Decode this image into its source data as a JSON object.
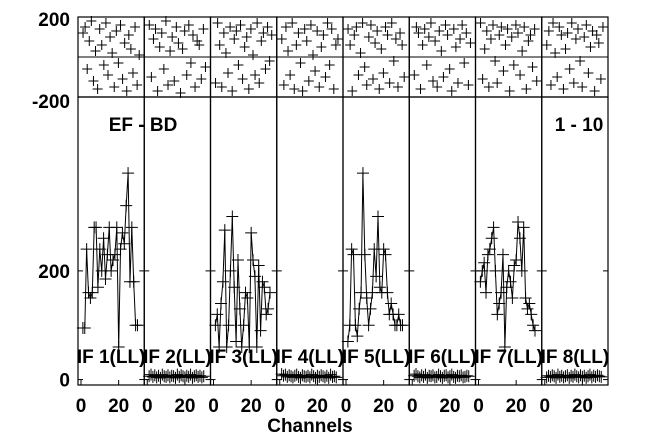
{
  "chart_data": {
    "type": "line",
    "title_text": "EF - BD",
    "baseline_text": "1 - 10",
    "xlabel": "Channels",
    "top_panel": {
      "ylim": [
        -200,
        200
      ],
      "yticks": [
        "200",
        "-200"
      ],
      "residuals": [
        [
          120,
          150,
          -60,
          80,
          180,
          -120,
          30,
          -160,
          140,
          60,
          -40,
          170,
          -90,
          100,
          20,
          -150,
          130,
          -30,
          160,
          -110,
          70,
          -170,
          110,
          40,
          -80,
          150,
          -140,
          10
        ],
        [
          160,
          -100,
          90,
          140,
          -170,
          50,
          120,
          -60,
          180,
          -140,
          30,
          100,
          -120,
          150,
          70,
          -180,
          40,
          130,
          -90,
          160,
          -30,
          110,
          -150,
          80,
          60,
          -110,
          140,
          -50
        ],
        [
          -130,
          170,
          60,
          -150,
          120,
          20,
          -80,
          150,
          -170,
          90,
          130,
          -40,
          160,
          -110,
          50,
          100,
          -160,
          140,
          10,
          -90,
          170,
          -130,
          80,
          120,
          -60,
          150,
          -20,
          110
        ],
        [
          90,
          -140,
          150,
          30,
          -90,
          170,
          -160,
          60,
          120,
          -30,
          -170,
          140,
          80,
          -120,
          160,
          10,
          -70,
          130,
          -150,
          50,
          110,
          -100,
          170,
          -40,
          140,
          -160,
          60,
          90
        ],
        [
          140,
          60,
          -170,
          110,
          150,
          -90,
          20,
          170,
          -50,
          -140,
          100,
          160,
          -110,
          70,
          130,
          -160,
          40,
          -80,
          150,
          110,
          -130,
          170,
          -20,
          90,
          -150,
          120,
          60,
          -100
        ],
        [
          -90,
          150,
          120,
          -160,
          60,
          140,
          -40,
          100,
          170,
          -120,
          80,
          -150,
          130,
          30,
          -100,
          160,
          110,
          -60,
          -170,
          140,
          50,
          -130,
          90,
          160,
          -30,
          120,
          -140,
          70
        ],
        [
          170,
          -110,
          40,
          130,
          -150,
          90,
          160,
          -20,
          -130,
          110,
          150,
          -70,
          60,
          140,
          -170,
          100,
          -40,
          160,
          120,
          -90,
          30,
          150,
          -160,
          80,
          110,
          -50,
          140,
          -120
        ],
        [
          60,
          130,
          -140,
          170,
          20,
          -100,
          150,
          110,
          -160,
          40,
          120,
          -60,
          170,
          -130,
          90,
          140,
          -20,
          -150,
          100,
          160,
          -80,
          50,
          130,
          -170,
          110,
          70,
          -110,
          150
        ]
      ]
    },
    "main_panel": {
      "ylim": [
        -10,
        520
      ],
      "yticks": [
        0,
        200
      ],
      "xlim": [
        0,
        32
      ],
      "xticks": [
        0,
        20
      ]
    },
    "series": [
      {
        "name": "IF 1(LL)",
        "x": [
          1,
          2,
          3,
          4,
          5,
          6,
          7,
          8,
          9,
          10,
          11,
          12,
          13,
          14,
          15,
          16,
          17,
          18,
          19,
          20,
          21,
          22,
          23,
          24,
          25,
          26,
          27,
          28,
          29,
          30
        ],
        "values": [
          95,
          95,
          240,
          160,
          150,
          160,
          280,
          280,
          170,
          240,
          200,
          260,
          185,
          230,
          280,
          200,
          220,
          230,
          280,
          60,
          240,
          270,
          250,
          320,
          380,
          180,
          280,
          180,
          100,
          100
        ]
      },
      {
        "name": "IF 2(LL)",
        "x": [
          1,
          2,
          3,
          4,
          5,
          6,
          7,
          8,
          9,
          10,
          11,
          12,
          13,
          14,
          15,
          16,
          17,
          18,
          19,
          20,
          21,
          22,
          23,
          24,
          25,
          26,
          27,
          28,
          29,
          30
        ],
        "values": [
          6,
          9,
          5,
          8,
          4,
          7,
          3,
          9,
          6,
          5,
          8,
          4,
          7,
          6,
          3,
          9,
          5,
          8,
          6,
          4,
          7,
          5,
          9,
          3,
          6,
          8,
          5,
          7,
          4,
          6
        ]
      },
      {
        "name": "IF 3(LL)",
        "x": [
          1,
          2,
          3,
          4,
          5,
          6,
          7,
          8,
          9,
          10,
          11,
          12,
          13,
          14,
          15,
          16,
          17,
          18,
          19,
          20,
          21,
          22,
          23,
          24,
          25,
          26,
          27,
          28,
          29,
          30
        ],
        "values": [
          100,
          120,
          60,
          140,
          180,
          275,
          60,
          100,
          200,
          300,
          170,
          70,
          220,
          130,
          60,
          100,
          160,
          150,
          60,
          270,
          220,
          190,
          60,
          210,
          90,
          180,
          170,
          120,
          130,
          160
        ]
      },
      {
        "name": "IF 4(LL)",
        "x": [
          1,
          2,
          3,
          4,
          5,
          6,
          7,
          8,
          9,
          10,
          11,
          12,
          13,
          14,
          15,
          16,
          17,
          18,
          19,
          20,
          21,
          22,
          23,
          24,
          25,
          26,
          27,
          28,
          29,
          30
        ],
        "values": [
          10,
          7,
          9,
          5,
          8,
          6,
          4,
          7,
          9,
          5,
          3,
          8,
          6,
          5,
          7,
          4,
          9,
          6,
          3,
          7,
          5,
          8,
          6,
          4,
          7,
          3,
          9,
          5,
          6,
          4
        ]
      },
      {
        "name": "IF 5(LL)",
        "x": [
          1,
          2,
          3,
          4,
          5,
          6,
          7,
          8,
          9,
          10,
          11,
          12,
          13,
          14,
          15,
          16,
          17,
          18,
          19,
          20,
          21,
          22,
          23,
          24,
          25,
          26,
          27,
          28,
          29,
          30
        ],
        "values": [
          70,
          100,
          240,
          230,
          100,
          80,
          130,
          160,
          380,
          230,
          150,
          100,
          130,
          160,
          240,
          190,
          300,
          170,
          160,
          240,
          230,
          160,
          120,
          140,
          120,
          100,
          100,
          120,
          100,
          100
        ]
      },
      {
        "name": "IF 6(LL)",
        "x": [
          1,
          2,
          3,
          4,
          5,
          6,
          7,
          8,
          9,
          10,
          11,
          12,
          13,
          14,
          15,
          16,
          17,
          18,
          19,
          20,
          21,
          22,
          23,
          24,
          25,
          26,
          27,
          28,
          29,
          30
        ],
        "values": [
          7,
          10,
          6,
          4,
          8,
          5,
          9,
          3,
          7,
          6,
          8,
          4,
          5,
          9,
          6,
          3,
          7,
          8,
          4,
          6,
          9,
          5,
          3,
          7,
          6,
          8,
          4,
          5,
          7,
          6
        ]
      },
      {
        "name": "IF 7(LL)",
        "x": [
          1,
          2,
          3,
          4,
          5,
          6,
          7,
          8,
          9,
          10,
          11,
          12,
          13,
          14,
          15,
          16,
          17,
          18,
          19,
          20,
          21,
          22,
          23,
          24,
          25,
          26,
          27,
          28,
          29,
          30
        ],
        "values": [
          180,
          200,
          215,
          160,
          230,
          240,
          260,
          280,
          200,
          120,
          140,
          160,
          230,
          60,
          170,
          200,
          180,
          150,
          210,
          220,
          290,
          260,
          200,
          280,
          150,
          130,
          140,
          120,
          100,
          90
        ]
      },
      {
        "name": "IF 8(LL)",
        "x": [
          1,
          2,
          3,
          4,
          5,
          6,
          7,
          8,
          9,
          10,
          11,
          12,
          13,
          14,
          15,
          16,
          17,
          18,
          19,
          20,
          21,
          22,
          23,
          24,
          25,
          26,
          27,
          28,
          29,
          30
        ],
        "values": [
          4,
          7,
          5,
          8,
          6,
          3,
          9,
          5,
          7,
          4,
          6,
          8,
          3,
          7,
          5,
          9,
          6,
          4,
          8,
          5,
          7,
          3,
          6,
          9,
          4,
          7,
          5,
          8,
          6,
          5
        ]
      }
    ]
  }
}
